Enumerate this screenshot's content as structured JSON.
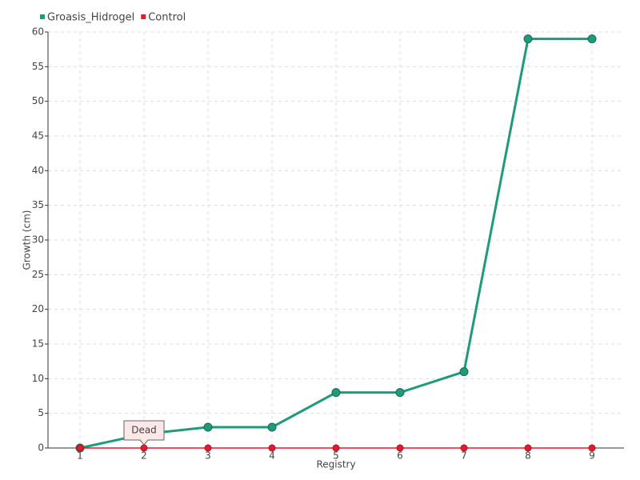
{
  "chart_data": {
    "type": "line",
    "x_label": "Registry",
    "y_label": "Growth (cm)",
    "categories": [
      "1",
      "2",
      "3",
      "4",
      "5",
      "6",
      "7",
      "8",
      "9"
    ],
    "series": [
      {
        "name": "Groasis_Hidrogel",
        "color": "#1f9a7a",
        "values": [
          0,
          2,
          3,
          3,
          8,
          8,
          11,
          59,
          59
        ]
      },
      {
        "name": "Control",
        "color": "#e31a2c",
        "values": [
          0,
          0,
          0,
          0,
          0,
          0,
          0,
          0,
          0
        ]
      }
    ],
    "annotations": [
      {
        "text": "Dead",
        "x": "2",
        "y": 0
      }
    ],
    "ylim": [
      0,
      60
    ],
    "yticks": [
      0,
      5,
      10,
      15,
      20,
      25,
      30,
      35,
      40,
      45,
      50,
      55,
      60
    ],
    "grid": true,
    "legend": "top-left"
  }
}
